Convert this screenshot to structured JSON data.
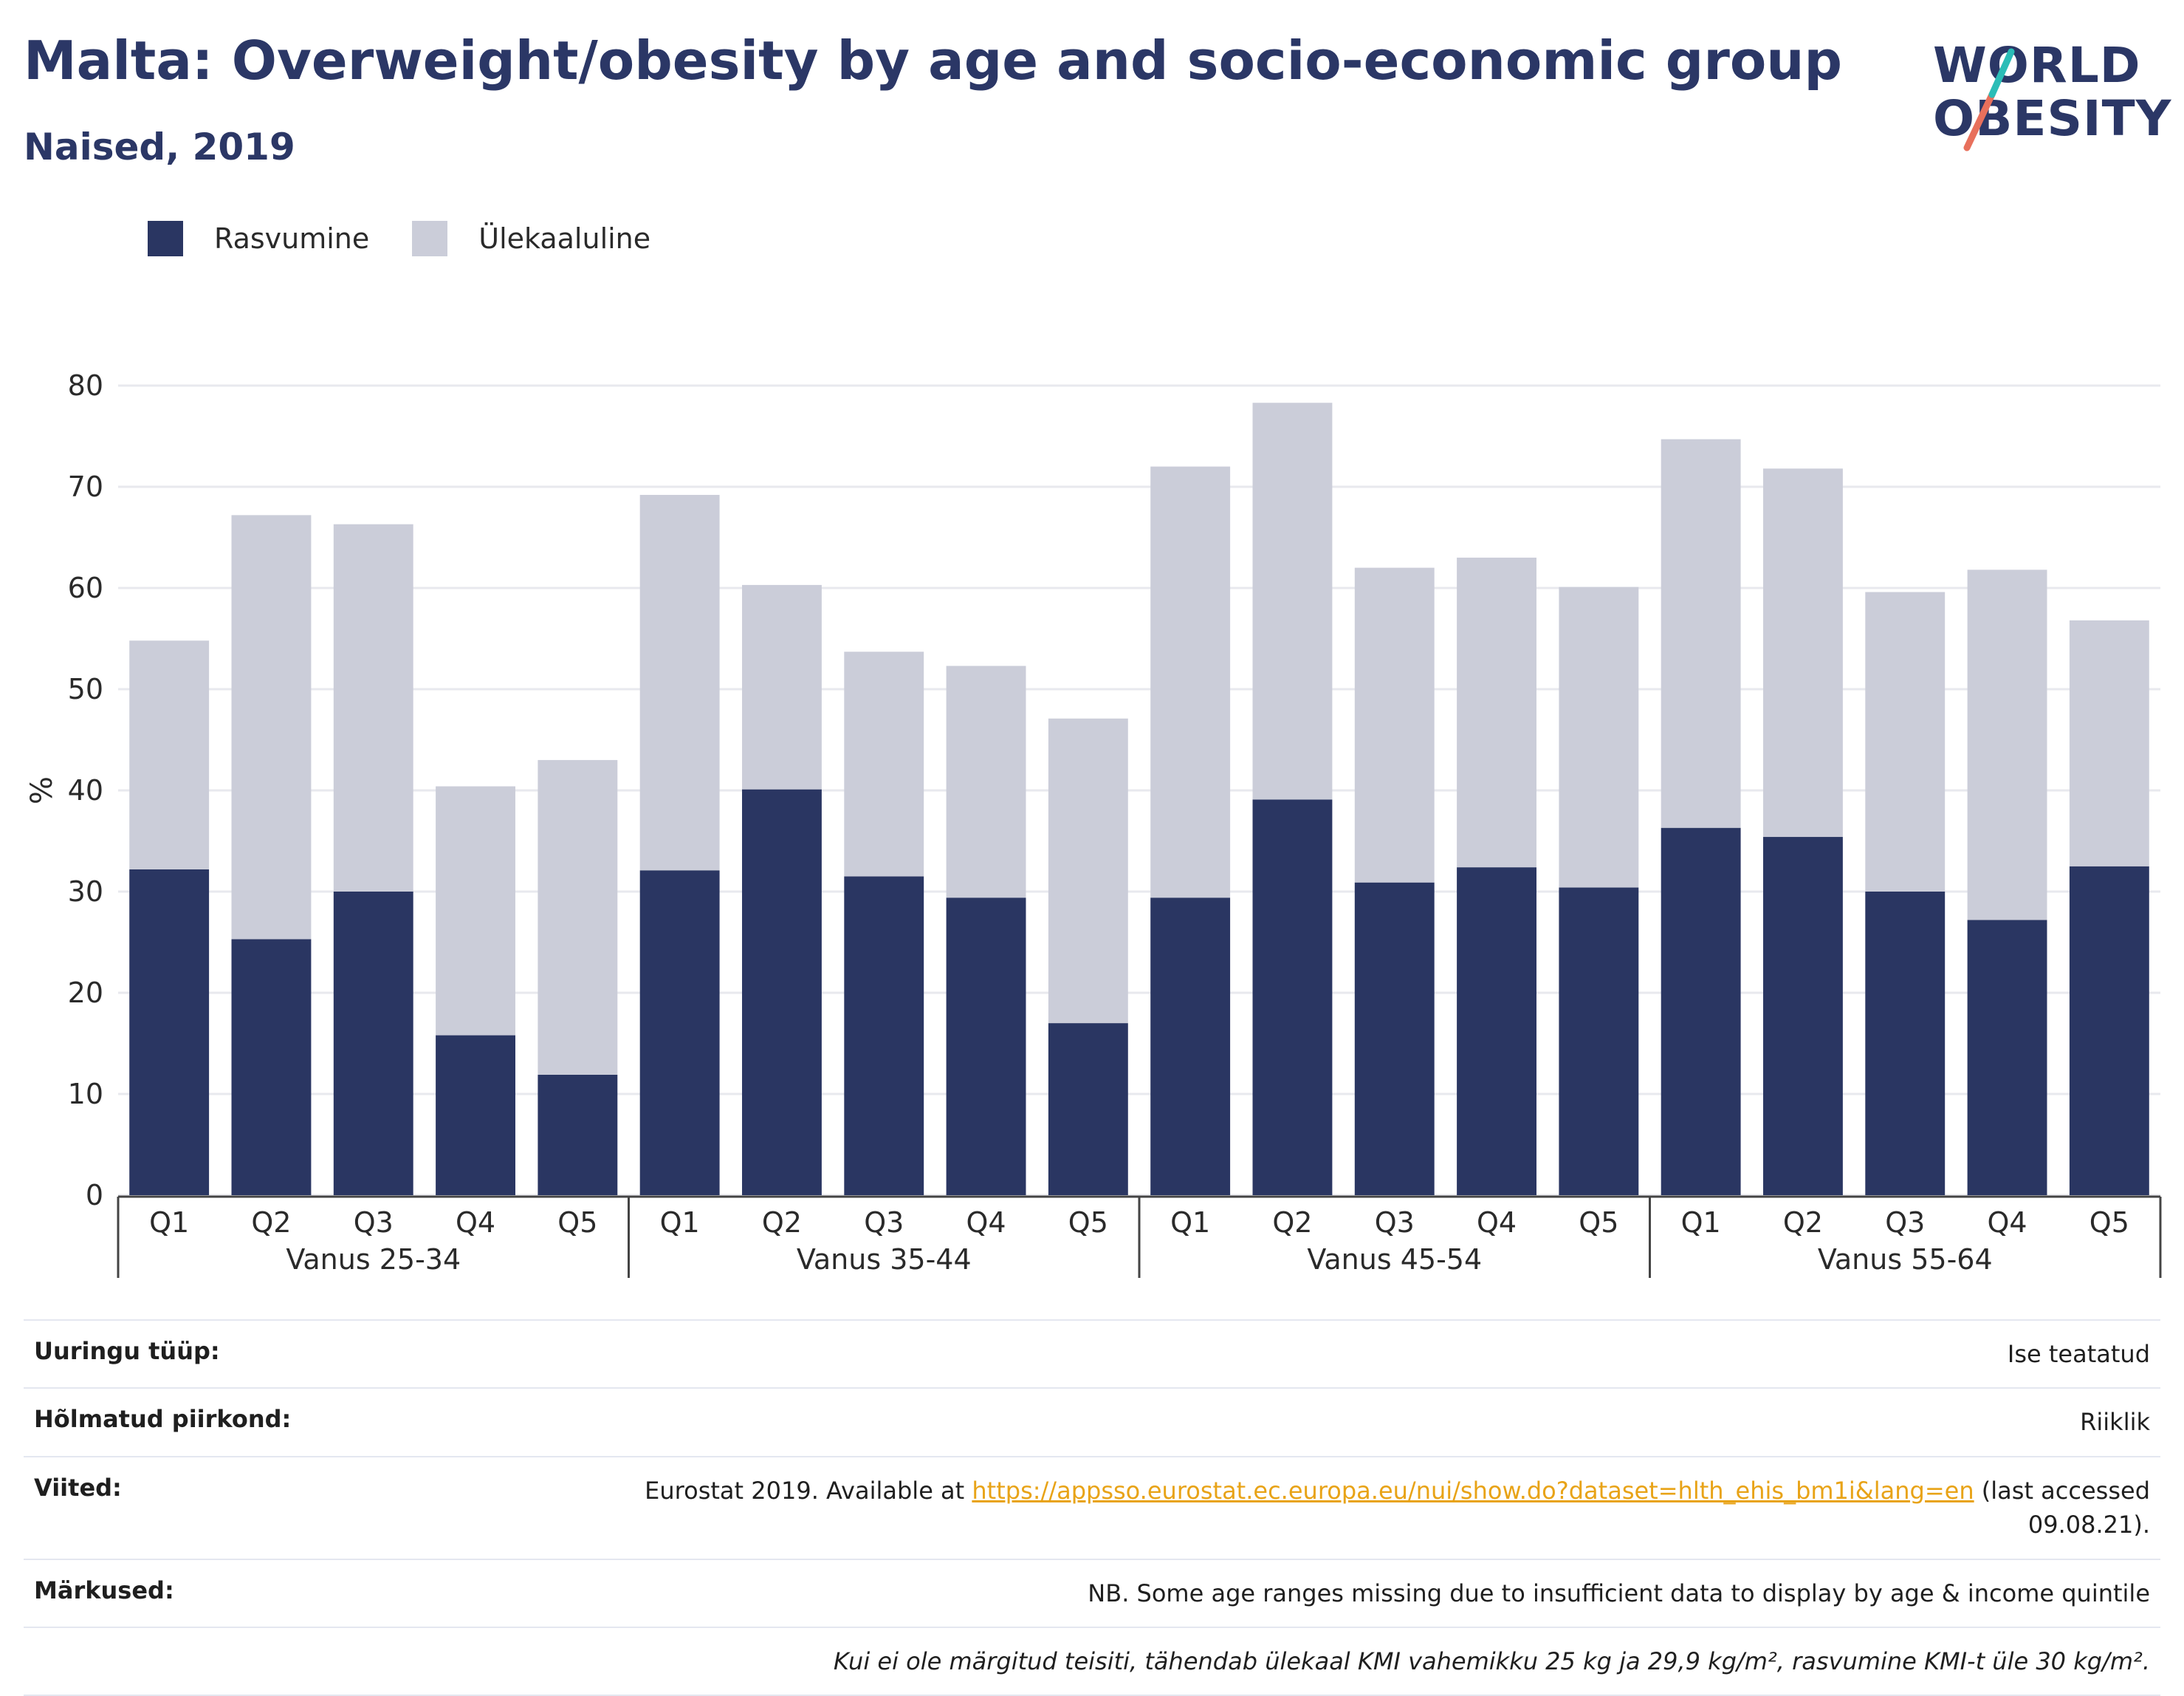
{
  "header": {
    "title": "Malta: Overweight/obesity by age and socio-economic group",
    "subtitle": "Naised, 2019"
  },
  "logo": {
    "line1": "WORLD",
    "line2": "OBESITY"
  },
  "legend": [
    {
      "label": "Rasvumine",
      "color": "#2a3662"
    },
    {
      "label": "Ülekaaluline",
      "color": "#cbcdd9"
    }
  ],
  "chart_data": {
    "type": "bar",
    "stacked": true,
    "ylabel": "%",
    "ylim": [
      0,
      80
    ],
    "yticks": [
      0,
      10,
      20,
      30,
      40,
      50,
      60,
      70,
      80
    ],
    "grid": true,
    "legend_position": "top-left",
    "groups": [
      "Vanus 25-34",
      "Vanus 35-44",
      "Vanus 45-54",
      "Vanus 55-64"
    ],
    "categories": [
      "Q1",
      "Q2",
      "Q3",
      "Q4",
      "Q5"
    ],
    "series": [
      {
        "name": "Rasvumine",
        "color": "#2a3662",
        "values": [
          [
            32.2,
            25.3,
            30.0,
            15.8,
            11.9
          ],
          [
            32.1,
            40.1,
            31.5,
            29.4,
            17.0
          ],
          [
            29.4,
            39.1,
            30.9,
            32.4,
            30.4
          ],
          [
            36.3,
            35.4,
            30.0,
            27.2,
            32.5
          ]
        ]
      },
      {
        "name": "Ülekaaluline",
        "color": "#cbcdd9",
        "values": [
          [
            22.6,
            41.9,
            36.3,
            24.6,
            31.1
          ],
          [
            37.1,
            20.2,
            22.2,
            22.9,
            30.1
          ],
          [
            42.6,
            39.2,
            31.1,
            30.6,
            29.7
          ],
          [
            38.4,
            36.4,
            29.6,
            34.6,
            24.3
          ]
        ]
      }
    ]
  },
  "meta": {
    "survey_type_label": "Uuringu tüüp:",
    "survey_type_value": "Ise teatatud",
    "region_label": "Hõlmatud piirkond:",
    "region_value": "Riiklik",
    "refs_label": "Viited:",
    "refs_prefix": "Eurostat 2019. Available at ",
    "refs_link": "https://appsso.eurostat.ec.europa.eu/nui/show.do?dataset=hlth_ehis_bm1i&lang=en",
    "refs_suffix": " (last accessed",
    "refs_date": "09.08.21).",
    "notes_label": "Märkused:",
    "notes_value": "NB. Some age ranges missing due to insufficient data to display by age & income quintile",
    "footnote": "Kui ei ole märgitud teisiti, tähendab ülekaal KMI vahemikku 25 kg ja 29,9 kg/m², rasvumine KMI-t üle 30 kg/m²."
  }
}
